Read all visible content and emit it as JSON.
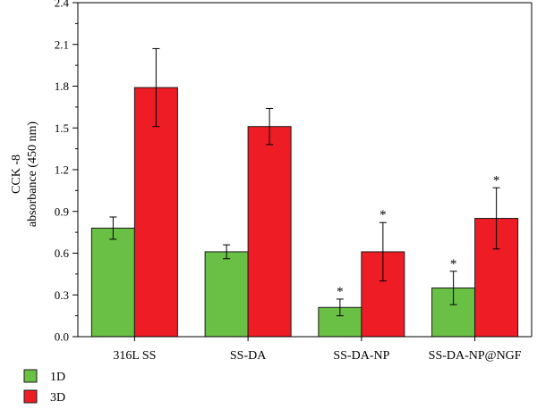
{
  "chart_data": {
    "type": "bar",
    "ylabel_lines": [
      "CCK -8",
      "absorbance (450 nm)"
    ],
    "ylim": [
      0,
      2.4
    ],
    "yticks": [
      "0.0",
      "0.3",
      "0.6",
      "0.9",
      "1.2",
      "1.5",
      "1.8",
      "2.1",
      "2.4"
    ],
    "categories": [
      "316L SS",
      "SS-DA",
      "SS-DA-NP",
      "SS-DA-NP@NGF"
    ],
    "series": [
      {
        "name": "1D",
        "color": "#6abf45",
        "values": [
          0.78,
          0.61,
          0.21,
          0.35
        ],
        "errors": [
          0.08,
          0.05,
          0.06,
          0.12
        ],
        "significance": [
          "",
          "",
          "*",
          "*"
        ]
      },
      {
        "name": "3D",
        "color": "#ee1c25",
        "values": [
          1.79,
          1.51,
          0.61,
          0.85
        ],
        "errors": [
          0.28,
          0.13,
          0.21,
          0.22
        ],
        "significance": [
          "",
          "",
          "*",
          "*"
        ]
      }
    ],
    "legend": {
      "position": "bottom-left",
      "entries": [
        "1D",
        "3D"
      ]
    }
  }
}
